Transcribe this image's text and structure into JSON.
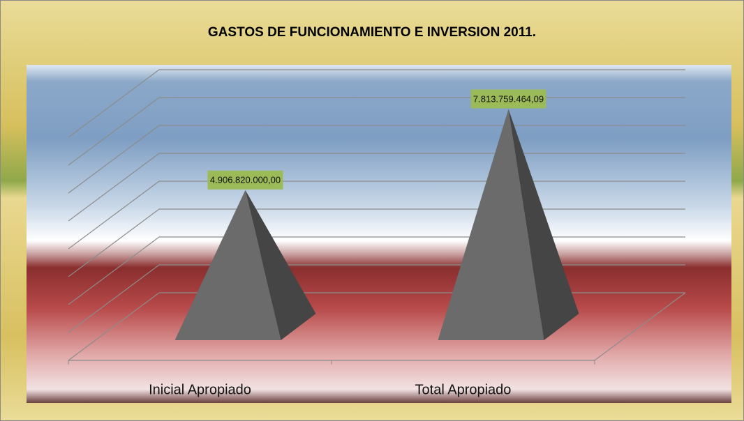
{
  "chart_data": {
    "type": "pyramid3d",
    "title": "GASTOS DE FUNCIONAMIENTO E INVERSION 2011.",
    "categories": [
      "Inicial Apropiado",
      "Total Apropiado"
    ],
    "values": [
      4906820000,
      7813759464.09
    ],
    "value_labels": [
      "4.906.820.000,00",
      "7.813.759.464,09"
    ],
    "color": "#6b6b6b",
    "label_color": "#9bbb59",
    "ylim": [
      0,
      8000000000
    ],
    "yticks": [
      0,
      1000000000,
      2000000000,
      3000000000,
      4000000000,
      5000000000,
      6000000000,
      7000000000,
      8000000000
    ],
    "grid": true
  }
}
